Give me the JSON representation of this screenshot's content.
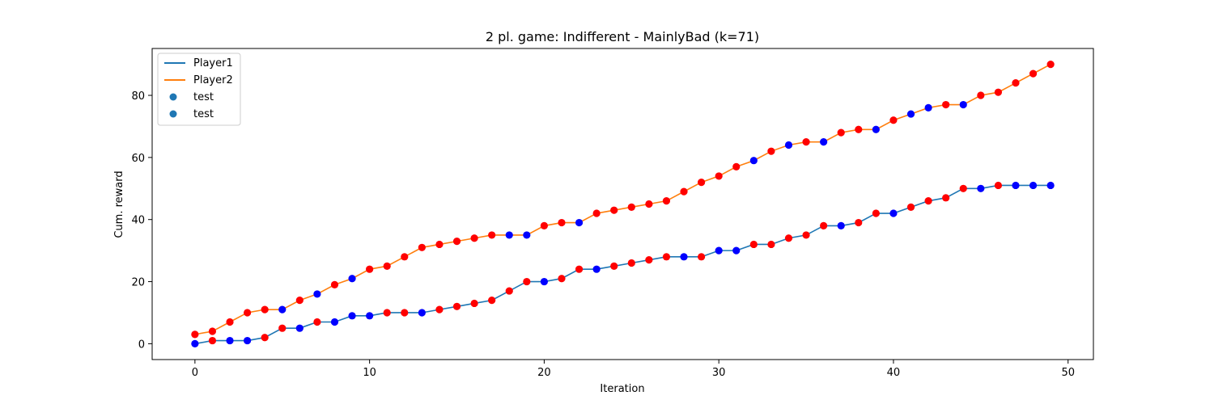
{
  "chart_data": {
    "type": "line",
    "title": "2 pl. game: Indifferent - MainlyBad (k=71)",
    "xlabel": "Iteration",
    "ylabel": "Cum. reward",
    "xlim": [
      -2.45,
      51.45
    ],
    "ylim": [
      -5.1,
      95.1
    ],
    "xticks": [
      0,
      10,
      20,
      30,
      40,
      50
    ],
    "yticks": [
      0,
      20,
      40,
      60,
      80
    ],
    "grid": false,
    "legend_position": "upper-left",
    "legend": [
      {
        "label": "Player1",
        "kind": "line",
        "color": "#1f77b4"
      },
      {
        "label": "Player2",
        "kind": "line",
        "color": "#ff7f0e"
      },
      {
        "label": "test",
        "kind": "marker",
        "color": "#1f77b4"
      },
      {
        "label": "test",
        "kind": "marker",
        "color": "#1f77b4"
      }
    ],
    "x": [
      0,
      1,
      2,
      3,
      4,
      5,
      6,
      7,
      8,
      9,
      10,
      11,
      12,
      13,
      14,
      15,
      16,
      17,
      18,
      19,
      20,
      21,
      22,
      23,
      24,
      25,
      26,
      27,
      28,
      29,
      30,
      31,
      32,
      33,
      34,
      35,
      36,
      37,
      38,
      39,
      40,
      41,
      42,
      43,
      44,
      45,
      46,
      47,
      48,
      49
    ],
    "series": [
      {
        "name": "Player1",
        "color": "#1f77b4",
        "values": [
          0,
          1,
          1,
          1,
          2,
          5,
          5,
          7,
          7,
          9,
          9,
          10,
          10,
          10,
          11,
          12,
          13,
          14,
          17,
          20,
          20,
          21,
          24,
          24,
          25,
          26,
          27,
          28,
          28,
          28,
          30,
          30,
          32,
          32,
          34,
          35,
          38,
          38,
          39,
          42,
          42,
          44,
          46,
          47,
          50,
          50,
          51,
          51,
          51,
          51
        ],
        "point_colors": [
          "b",
          "r",
          "b",
          "b",
          "r",
          "r",
          "b",
          "r",
          "b",
          "b",
          "b",
          "r",
          "r",
          "b",
          "r",
          "r",
          "r",
          "r",
          "r",
          "r",
          "b",
          "r",
          "r",
          "b",
          "r",
          "r",
          "r",
          "r",
          "b",
          "r",
          "b",
          "b",
          "r",
          "r",
          "r",
          "r",
          "r",
          "b",
          "r",
          "r",
          "b",
          "r",
          "r",
          "r",
          "r",
          "b",
          "r",
          "b",
          "b",
          "b"
        ]
      },
      {
        "name": "Player2",
        "color": "#ff7f0e",
        "values": [
          3,
          4,
          7,
          10,
          11,
          11,
          14,
          16,
          19,
          21,
          24,
          25,
          28,
          31,
          32,
          33,
          34,
          35,
          35,
          35,
          38,
          39,
          39,
          42,
          43,
          44,
          45,
          46,
          49,
          52,
          54,
          57,
          59,
          62,
          64,
          65,
          65,
          68,
          69,
          69,
          72,
          74,
          76,
          77,
          77,
          80,
          81,
          84,
          87,
          90
        ],
        "point_colors": [
          "r",
          "r",
          "r",
          "r",
          "r",
          "b",
          "r",
          "b",
          "r",
          "b",
          "r",
          "r",
          "r",
          "r",
          "r",
          "r",
          "r",
          "r",
          "b",
          "b",
          "r",
          "r",
          "b",
          "r",
          "r",
          "r",
          "r",
          "r",
          "r",
          "r",
          "r",
          "r",
          "b",
          "r",
          "b",
          "r",
          "b",
          "r",
          "r",
          "b",
          "r",
          "b",
          "b",
          "r",
          "b",
          "r",
          "r",
          "r",
          "r",
          "r"
        ]
      }
    ],
    "marker_colors": {
      "r": "#ff0000",
      "b": "#0000ff"
    }
  }
}
